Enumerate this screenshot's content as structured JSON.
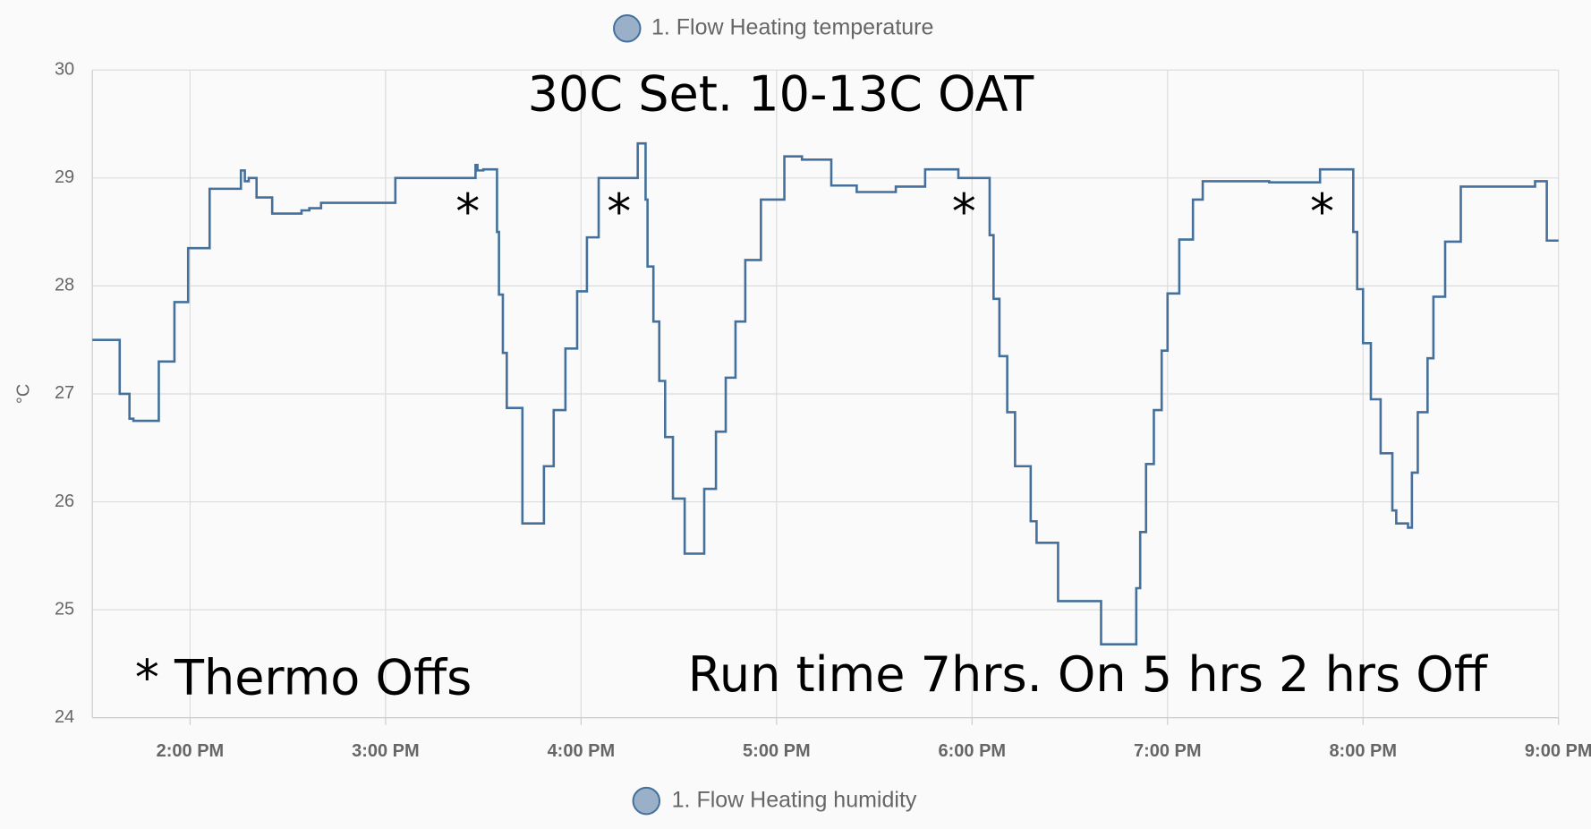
{
  "chart_data": {
    "type": "step-line",
    "legend_top": "1. Flow Heating temperature",
    "legend_bottom": "1. Flow Heating humidity",
    "y_label": "°C",
    "annotations": [
      "30C Set.  10-13C OAT",
      "* Thermo Offs",
      "Run time 7hrs.  On 5 hrs 2 hrs Off",
      "*",
      "*",
      "*",
      "*"
    ],
    "grid": true,
    "xlim": [
      13.5,
      21.0
    ],
    "xticks": [
      {
        "value": 14,
        "label": "2:00 PM"
      },
      {
        "value": 15,
        "label": "3:00 PM"
      },
      {
        "value": 16,
        "label": "4:00 PM"
      },
      {
        "value": 17,
        "label": "5:00 PM"
      },
      {
        "value": 18,
        "label": "6:00 PM"
      },
      {
        "value": 19,
        "label": "7:00 PM"
      },
      {
        "value": 20,
        "label": "8:00 PM"
      },
      {
        "value": 21,
        "label": "9:00 PM"
      }
    ],
    "ylim": [
      24,
      30
    ],
    "yticks": [
      24,
      25,
      26,
      27,
      28,
      29,
      30
    ],
    "series": [
      {
        "name": "1. Flow Heating temperature",
        "color": "#44709b",
        "x": [
          13.5,
          13.64,
          13.69,
          13.71,
          13.84,
          13.92,
          13.99,
          14.1,
          14.26,
          14.28,
          14.3,
          14.34,
          14.42,
          14.57,
          14.61,
          14.67,
          15.05,
          15.46,
          15.47,
          15.5,
          15.57,
          15.58,
          15.6,
          15.62,
          15.7,
          15.81,
          15.86,
          15.92,
          15.98,
          16.03,
          16.09,
          16.29,
          16.33,
          16.34,
          16.37,
          16.4,
          16.43,
          16.47,
          16.53,
          16.63,
          16.69,
          16.74,
          16.79,
          16.84,
          16.92,
          17.04,
          17.13,
          17.28,
          17.41,
          17.61,
          17.76,
          17.93,
          18.09,
          18.11,
          18.14,
          18.18,
          18.22,
          18.3,
          18.33,
          18.44,
          18.66,
          18.84,
          18.86,
          18.89,
          18.93,
          18.97,
          19.0,
          19.06,
          19.13,
          19.18,
          19.52,
          19.78,
          19.95,
          19.97,
          20.0,
          20.04,
          20.09,
          20.15,
          20.17,
          20.23,
          20.25,
          20.28,
          20.33,
          20.36,
          20.42,
          20.5,
          20.88,
          20.94,
          21.0
        ],
        "values": [
          27.5,
          27.0,
          26.77,
          26.75,
          27.3,
          27.85,
          28.35,
          28.9,
          29.07,
          28.97,
          29.0,
          28.82,
          28.67,
          28.7,
          28.72,
          28.77,
          29.0,
          29.12,
          29.07,
          29.08,
          28.5,
          27.92,
          27.38,
          26.87,
          25.8,
          26.33,
          26.85,
          27.42,
          27.95,
          28.45,
          29.0,
          29.32,
          28.8,
          28.18,
          27.67,
          27.12,
          26.6,
          26.03,
          25.52,
          26.12,
          26.65,
          27.15,
          27.67,
          28.24,
          28.8,
          29.2,
          29.17,
          28.93,
          28.87,
          28.92,
          29.08,
          29.0,
          28.47,
          27.88,
          27.35,
          26.83,
          26.33,
          25.82,
          25.62,
          25.08,
          24.68,
          25.2,
          25.72,
          26.35,
          26.85,
          27.4,
          27.93,
          28.43,
          28.8,
          28.97,
          28.96,
          29.08,
          28.5,
          27.97,
          27.47,
          26.95,
          26.45,
          25.92,
          25.8,
          25.76,
          26.27,
          26.83,
          27.33,
          27.9,
          28.41,
          28.92,
          28.97,
          28.42,
          28.42
        ]
      }
    ]
  }
}
